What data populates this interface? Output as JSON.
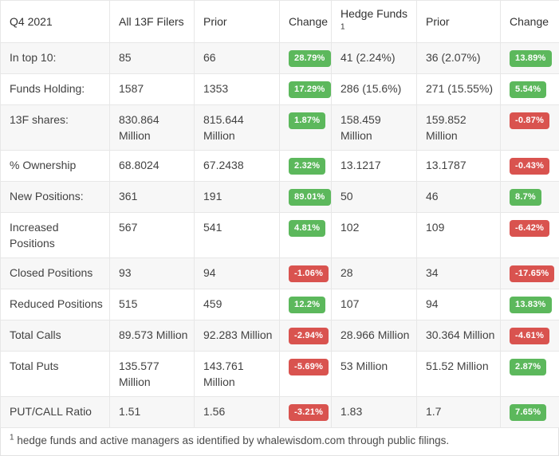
{
  "colors": {
    "positive": "#5cb85c",
    "negative": "#d9534f"
  },
  "table": {
    "columns": [
      {
        "label": "Q4 2021"
      },
      {
        "label": "All 13F Filers"
      },
      {
        "label": "Prior"
      },
      {
        "label": "Change"
      },
      {
        "label": "Hedge Funds",
        "superscript": "1"
      },
      {
        "label": "Prior"
      },
      {
        "label": "Change"
      }
    ],
    "rows": [
      {
        "label": "In top 10:",
        "all_filers": "85",
        "all_prior": "66",
        "all_change": "28.79%",
        "hedge_funds": "41 (2.24%)",
        "hedge_prior": "36 (2.07%)",
        "hedge_change": "13.89%"
      },
      {
        "label": "Funds Holding:",
        "all_filers": "1587",
        "all_prior": "1353",
        "all_change": "17.29%",
        "hedge_funds": "286 (15.6%)",
        "hedge_prior": "271 (15.55%)",
        "hedge_change": "5.54%"
      },
      {
        "label": "13F shares:",
        "all_filers": "830.864 Million",
        "all_prior": "815.644 Million",
        "all_change": "1.87%",
        "hedge_funds": "158.459 Million",
        "hedge_prior": "159.852 Million",
        "hedge_change": "-0.87%"
      },
      {
        "label": "% Ownership",
        "all_filers": "68.8024",
        "all_prior": "67.2438",
        "all_change": "2.32%",
        "hedge_funds": "13.1217",
        "hedge_prior": "13.1787",
        "hedge_change": "-0.43%"
      },
      {
        "label": "New Positions:",
        "all_filers": "361",
        "all_prior": "191",
        "all_change": "89.01%",
        "hedge_funds": "50",
        "hedge_prior": "46",
        "hedge_change": "8.7%"
      },
      {
        "label": "Increased Positions",
        "all_filers": "567",
        "all_prior": "541",
        "all_change": "4.81%",
        "hedge_funds": "102",
        "hedge_prior": "109",
        "hedge_change": "-6.42%"
      },
      {
        "label": "Closed Positions",
        "all_filers": "93",
        "all_prior": "94",
        "all_change": "-1.06%",
        "hedge_funds": "28",
        "hedge_prior": "34",
        "hedge_change": "-17.65%"
      },
      {
        "label": "Reduced Positions",
        "all_filers": "515",
        "all_prior": "459",
        "all_change": "12.2%",
        "hedge_funds": "107",
        "hedge_prior": "94",
        "hedge_change": "13.83%"
      },
      {
        "label": "Total Calls",
        "all_filers": "89.573 Million",
        "all_prior": "92.283 Million",
        "all_change": "-2.94%",
        "hedge_funds": "28.966 Million",
        "hedge_prior": "30.364 Million",
        "hedge_change": "-4.61%"
      },
      {
        "label": "Total Puts",
        "all_filers": "135.577 Million",
        "all_prior": "143.761 Million",
        "all_change": "-5.69%",
        "hedge_funds": "53 Million",
        "hedge_prior": "51.52 Million",
        "hedge_change": "2.87%"
      },
      {
        "label": "PUT/CALL Ratio",
        "all_filers": "1.51",
        "all_prior": "1.56",
        "all_change": "-3.21%",
        "hedge_funds": "1.83",
        "hedge_prior": "1.7",
        "hedge_change": "7.65%"
      }
    ],
    "footnote_marker": "1",
    "footnote_text": "hedge funds and active managers as identified by whalewisdom.com through public filings."
  }
}
